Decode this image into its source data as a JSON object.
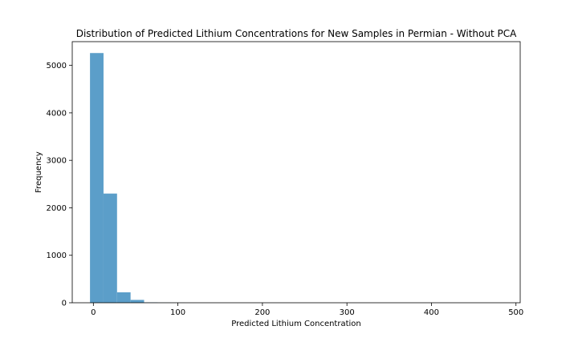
{
  "chart_data": {
    "type": "bar",
    "title": "Distribution of Predicted Lithium Concentrations for New Samples in Permian - Without PCA",
    "xlabel": "Predicted Lithium Concentration",
    "ylabel": "Frequency",
    "xlim": [
      -25,
      505
    ],
    "ylim": [
      0,
      5500
    ],
    "x_ticks": [
      0,
      100,
      200,
      300,
      400,
      500
    ],
    "y_ticks": [
      0,
      1000,
      2000,
      3000,
      4000,
      5000
    ],
    "bins": [
      {
        "x0": -4,
        "x1": 12,
        "value": 5260
      },
      {
        "x0": 12,
        "x1": 28,
        "value": 2300
      },
      {
        "x0": 28,
        "x1": 44,
        "value": 220
      },
      {
        "x0": 44,
        "x1": 60,
        "value": 60
      },
      {
        "x0": 60,
        "x1": 76,
        "value": 8
      },
      {
        "x0": 76,
        "x1": 92,
        "value": 3
      },
      {
        "x0": 92,
        "x1": 108,
        "value": 1
      }
    ],
    "bar_color": "#5b9ec9",
    "grid": false,
    "legend": "none"
  }
}
